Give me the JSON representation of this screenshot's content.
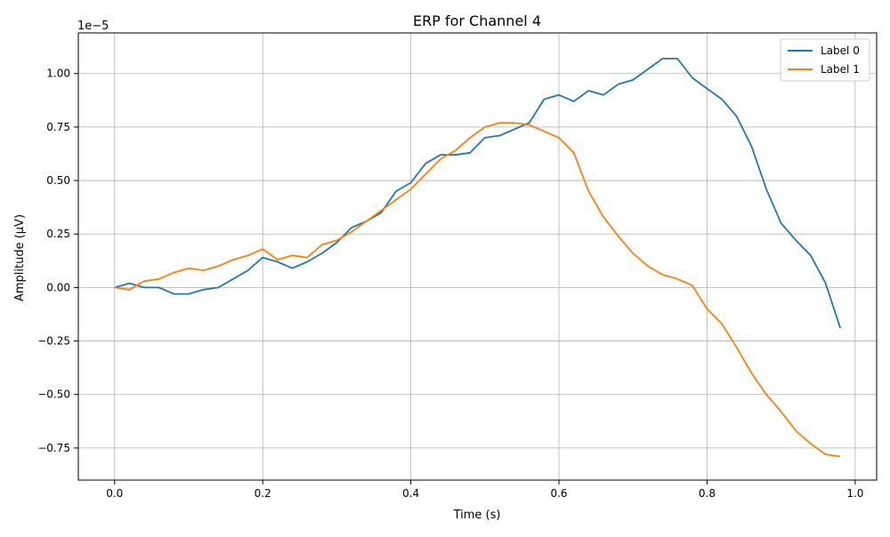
{
  "chart_data": {
    "type": "line",
    "title": "ERP for Channel 4",
    "xlabel": "Time (s)",
    "ylabel": "Amplitude (µV)",
    "offset_text": "1e−5",
    "xlim": [
      -0.049,
      1.029
    ],
    "ylim": [
      -0.9,
      1.19
    ],
    "grid": true,
    "legend_position": "top-right",
    "x_ticks": [
      0.0,
      0.2,
      0.4,
      0.6,
      0.8,
      1.0
    ],
    "x_tick_labels": [
      "0.0",
      "0.2",
      "0.4",
      "0.6",
      "0.8",
      "1.0"
    ],
    "y_ticks": [
      -0.75,
      -0.5,
      -0.25,
      0.0,
      0.25,
      0.5,
      0.75,
      1.0
    ],
    "y_tick_labels": [
      "−0.75",
      "−0.50",
      "−0.25",
      "0.00",
      "0.25",
      "0.50",
      "0.75",
      "1.00"
    ],
    "x": [
      0.0,
      0.02,
      0.04,
      0.06,
      0.08,
      0.1,
      0.12,
      0.14,
      0.16,
      0.18,
      0.2,
      0.22,
      0.24,
      0.26,
      0.28,
      0.3,
      0.32,
      0.34,
      0.36,
      0.38,
      0.4,
      0.42,
      0.44,
      0.46,
      0.48,
      0.5,
      0.52,
      0.54,
      0.56,
      0.58,
      0.6,
      0.62,
      0.64,
      0.66,
      0.68,
      0.7,
      0.72,
      0.74,
      0.76,
      0.78,
      0.8,
      0.82,
      0.84,
      0.86,
      0.88,
      0.9,
      0.92,
      0.94,
      0.96,
      0.98
    ],
    "series": [
      {
        "name": "Label 0",
        "color": "#1f77b4",
        "values": [
          0.0,
          0.02,
          0.0,
          0.0,
          -0.03,
          -0.03,
          -0.01,
          0.0,
          0.04,
          0.08,
          0.14,
          0.12,
          0.09,
          0.12,
          0.16,
          0.21,
          0.28,
          0.31,
          0.35,
          0.45,
          0.49,
          0.58,
          0.62,
          0.62,
          0.63,
          0.7,
          0.71,
          0.74,
          0.77,
          0.88,
          0.9,
          0.87,
          0.92,
          0.9,
          0.95,
          0.97,
          1.02,
          1.07,
          1.07,
          0.98,
          0.93,
          0.88,
          0.8,
          0.66,
          0.46,
          0.3,
          0.22,
          0.15,
          0.02,
          -0.19
        ]
      },
      {
        "name": "Label 1",
        "color": "#ff7f0e",
        "values": [
          0.0,
          -0.01,
          0.03,
          0.04,
          0.07,
          0.09,
          0.08,
          0.1,
          0.13,
          0.15,
          0.18,
          0.13,
          0.15,
          0.14,
          0.2,
          0.22,
          0.26,
          0.31,
          0.36,
          0.41,
          0.46,
          0.53,
          0.6,
          0.64,
          0.7,
          0.75,
          0.77,
          0.77,
          0.76,
          0.73,
          0.7,
          0.63,
          0.45,
          0.33,
          0.24,
          0.16,
          0.1,
          0.06,
          0.04,
          0.01,
          -0.1,
          -0.17,
          -0.28,
          -0.4,
          -0.5,
          -0.58,
          -0.67,
          -0.73,
          -0.78,
          -0.79
        ]
      }
    ]
  }
}
